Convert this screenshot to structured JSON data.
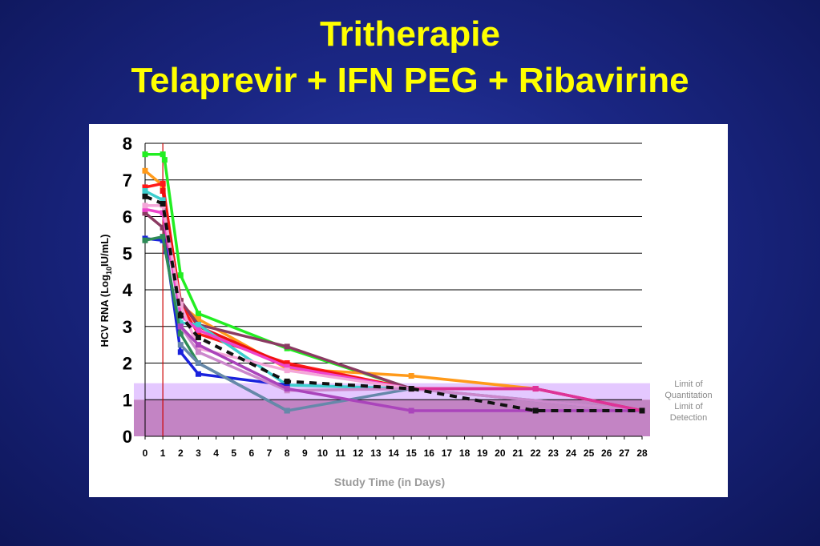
{
  "title": "Tritherapie",
  "subtitle": "Telaprevir + IFN PEG + Ribavirine",
  "chart_data": {
    "type": "line",
    "title": "Tritherapie",
    "subtitle": "Telaprevir + IFN PEG + Ribavirine",
    "xlabel": "Study Time (in Days)",
    "ylabel": "HCV RNA (Log10IU/mL)",
    "ylabel_parts": {
      "pre": "HCV RNA (Log",
      "sub": "10",
      "post": "IU/mL)"
    },
    "xlim": [
      0,
      28
    ],
    "ylim": [
      0,
      8
    ],
    "x_ticks": [
      "0",
      "1",
      "2",
      "3",
      "4",
      "5",
      "6",
      "7",
      "8",
      "9",
      "10",
      "11",
      "12",
      "13",
      "14",
      "15",
      "16",
      "17",
      "18",
      "19",
      "20",
      "21",
      "22",
      "23",
      "24",
      "25",
      "26",
      "27",
      "28"
    ],
    "y_ticks": [
      "0",
      "1",
      "2",
      "3",
      "4",
      "5",
      "6",
      "7",
      "8"
    ],
    "grid": "horizontal",
    "dosing_line_x": 1,
    "bands": [
      {
        "label_lines": [
          "Limit of",
          "Quantitation"
        ],
        "y_from": 1.0,
        "y_to": 1.45,
        "color": "#e4c8ff"
      },
      {
        "label_lines": [
          "Limit of",
          "Detection"
        ],
        "y_from": 0.0,
        "y_to": 1.0,
        "color": "#c384c4"
      }
    ],
    "series": [
      {
        "color": "#22ee22",
        "dash": false,
        "values": [
          [
            0,
            7.7
          ],
          [
            1,
            7.7
          ],
          [
            1.1,
            7.55
          ],
          [
            2,
            4.4
          ],
          [
            3,
            3.35
          ],
          [
            8,
            2.4
          ],
          [
            15,
            1.3
          ]
        ]
      },
      {
        "color": "#ff9a1a",
        "dash": false,
        "values": [
          [
            0,
            7.25
          ],
          [
            1,
            6.85
          ],
          [
            2,
            3.6
          ],
          [
            3,
            3.2
          ],
          [
            8,
            1.85
          ],
          [
            15,
            1.65
          ],
          [
            22,
            1.3
          ]
        ]
      },
      {
        "color": "#ff1a1a",
        "dash": false,
        "values": [
          [
            0,
            6.8
          ],
          [
            1,
            6.9
          ],
          [
            2,
            3.6
          ],
          [
            3,
            2.8
          ],
          [
            8,
            2.0
          ],
          [
            15,
            1.3
          ]
        ]
      },
      {
        "color": "#ee1111",
        "dash": false,
        "values": [
          [
            1,
            6.7
          ],
          [
            2,
            3.7
          ],
          [
            3,
            3.0
          ],
          [
            8,
            1.95
          ],
          [
            15,
            1.3
          ],
          [
            22,
            1.3
          ],
          [
            28,
            0.7
          ]
        ]
      },
      {
        "color": "#8b3a62",
        "dash": false,
        "values": [
          [
            0,
            6.1
          ],
          [
            1,
            5.7
          ],
          [
            2,
            3.7
          ],
          [
            3,
            3.05
          ],
          [
            8,
            2.45
          ],
          [
            15,
            1.3
          ]
        ]
      },
      {
        "color": "#3dcece",
        "dash": false,
        "values": [
          [
            0,
            6.7
          ],
          [
            1,
            6.45
          ],
          [
            2,
            3.1
          ],
          [
            3,
            3.05
          ],
          [
            8,
            1.4
          ],
          [
            15,
            1.3
          ]
        ]
      },
      {
        "color": "#1a22dd",
        "dash": false,
        "values": [
          [
            0,
            5.4
          ],
          [
            1,
            5.35
          ],
          [
            1.2,
            5.05
          ],
          [
            2,
            2.3
          ],
          [
            3,
            1.7
          ],
          [
            8,
            1.4
          ]
        ]
      },
      {
        "color": "#2e8b57",
        "dash": false,
        "values": [
          [
            0,
            5.35
          ],
          [
            1,
            5.45
          ],
          [
            2,
            2.8
          ],
          [
            3,
            2.0
          ],
          [
            8,
            0.7
          ]
        ]
      },
      {
        "color": "#6688aa",
        "dash": false,
        "values": [
          [
            2,
            2.5
          ],
          [
            3,
            2.0
          ],
          [
            8,
            0.7
          ],
          [
            15,
            1.3
          ],
          [
            28,
            0.7
          ]
        ]
      },
      {
        "color": "#ee44cc",
        "dash": false,
        "values": [
          [
            0,
            6.2
          ],
          [
            1,
            6.1
          ],
          [
            2,
            3.3
          ],
          [
            3,
            2.9
          ],
          [
            8,
            1.9
          ],
          [
            15,
            1.3
          ],
          [
            22,
            1.3
          ]
        ]
      },
      {
        "color": "#f4a6d8",
        "dash": false,
        "values": [
          [
            0,
            6.3
          ],
          [
            1,
            6.3
          ],
          [
            2,
            3.6
          ],
          [
            3,
            2.4
          ],
          [
            8,
            1.8
          ],
          [
            15,
            1.3
          ]
        ]
      },
      {
        "color": "#cc88cc",
        "dash": false,
        "values": [
          [
            2,
            3.0
          ],
          [
            3,
            2.3
          ],
          [
            8,
            1.25
          ],
          [
            15,
            1.3
          ],
          [
            28,
            0.7
          ]
        ]
      },
      {
        "color": "#aa44bb",
        "dash": false,
        "values": [
          [
            2,
            3.0
          ],
          [
            3,
            2.5
          ],
          [
            8,
            1.3
          ],
          [
            15,
            0.7
          ],
          [
            22,
            0.7
          ],
          [
            28,
            0.7
          ]
        ]
      },
      {
        "color": "#dd3399",
        "dash": false,
        "values": [
          [
            15,
            1.3
          ],
          [
            22,
            1.3
          ],
          [
            28,
            0.7
          ]
        ]
      },
      {
        "color": "#111111",
        "dash": true,
        "values": [
          [
            0,
            6.55
          ],
          [
            1,
            6.35
          ],
          [
            2,
            3.3
          ],
          [
            3,
            2.7
          ],
          [
            8,
            1.5
          ],
          [
            15,
            1.3
          ],
          [
            22,
            0.7
          ],
          [
            28,
            0.7
          ]
        ]
      }
    ]
  }
}
